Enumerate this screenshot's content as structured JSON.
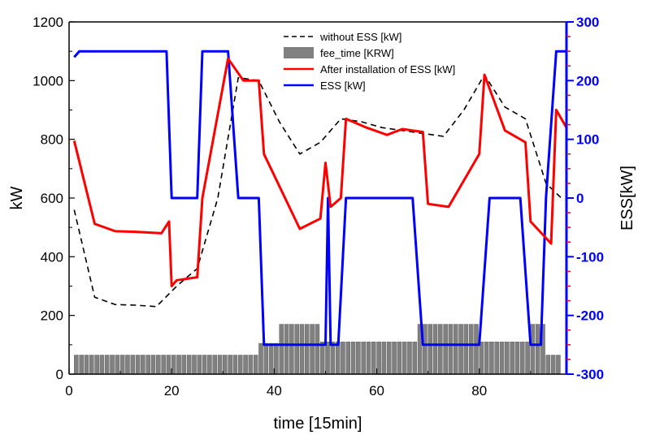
{
  "chart_data": {
    "type": "line",
    "xlabel": "time [15min]",
    "ylabel": "kW",
    "y2label": "ESS[kW]",
    "xlim": [
      0,
      97
    ],
    "ylim": [
      0,
      1200
    ],
    "y2lim": [
      -300,
      300
    ],
    "xticks": [
      0,
      20,
      40,
      60,
      80
    ],
    "yticks": [
      0,
      200,
      400,
      600,
      800,
      1000,
      1200
    ],
    "y2ticks": [
      -300,
      -200,
      -100,
      0,
      100,
      200,
      300
    ],
    "grid": false,
    "legend_position": "top-center",
    "colors": {
      "without_ess": "#000000",
      "fee_time": "#808080",
      "after_ess": "#ff0000",
      "ess": "#0000ff",
      "right_axis": "#0000ff"
    },
    "series": [
      {
        "name": "without ESS [kW]",
        "axis": "left",
        "style": "dashed",
        "points": [
          [
            1,
            560
          ],
          [
            5,
            262
          ],
          [
            9,
            237
          ],
          [
            13,
            235
          ],
          [
            17,
            230
          ],
          [
            21,
            300
          ],
          [
            25,
            360
          ],
          [
            29,
            600
          ],
          [
            33,
            1010
          ],
          [
            37,
            1000
          ],
          [
            41,
            860
          ],
          [
            45,
            750
          ],
          [
            49,
            790
          ],
          [
            53,
            870
          ],
          [
            57,
            860
          ],
          [
            61,
            840
          ],
          [
            65,
            830
          ],
          [
            69,
            820
          ],
          [
            73,
            810
          ],
          [
            77,
            900
          ],
          [
            81,
            1020
          ],
          [
            85,
            910
          ],
          [
            89,
            870
          ],
          [
            93,
            650
          ],
          [
            96,
            600
          ]
        ]
      },
      {
        "name": "fee_time [KRW]",
        "axis": "left",
        "style": "bars",
        "segments": [
          {
            "from": 1,
            "to": 37,
            "value": 65
          },
          {
            "from": 37,
            "to": 41,
            "value": 105
          },
          {
            "from": 41,
            "to": 49,
            "value": 170
          },
          {
            "from": 49,
            "to": 68,
            "value": 110
          },
          {
            "from": 68,
            "to": 80,
            "value": 170
          },
          {
            "from": 80,
            "to": 90,
            "value": 110
          },
          {
            "from": 90,
            "to": 93,
            "value": 170
          },
          {
            "from": 93,
            "to": 96,
            "value": 65
          }
        ]
      },
      {
        "name": "After installation of ESS [kW]",
        "axis": "left",
        "style": "solid",
        "points": [
          [
            1,
            795
          ],
          [
            5,
            512
          ],
          [
            9,
            487
          ],
          [
            13,
            485
          ],
          [
            18,
            480
          ],
          [
            19.5,
            520
          ],
          [
            20,
            300
          ],
          [
            21,
            320
          ],
          [
            25,
            330
          ],
          [
            26,
            600
          ],
          [
            31,
            1075
          ],
          [
            34,
            1000
          ],
          [
            37,
            1000
          ],
          [
            38,
            750
          ],
          [
            45,
            495
          ],
          [
            49,
            530
          ],
          [
            50,
            720
          ],
          [
            51,
            570
          ],
          [
            53,
            600
          ],
          [
            54,
            870
          ],
          [
            58,
            840
          ],
          [
            62,
            815
          ],
          [
            65,
            835
          ],
          [
            69,
            825
          ],
          [
            70,
            580
          ],
          [
            74,
            570
          ],
          [
            80,
            750
          ],
          [
            81,
            1020
          ],
          [
            85,
            830
          ],
          [
            89,
            790
          ],
          [
            90,
            520
          ],
          [
            94,
            445
          ],
          [
            95,
            900
          ],
          [
            97,
            840
          ]
        ]
      },
      {
        "name": "ESS [kW]",
        "axis": "right",
        "style": "solid",
        "points": [
          [
            1,
            240
          ],
          [
            2,
            250
          ],
          [
            19,
            250
          ],
          [
            20,
            0
          ],
          [
            25,
            0
          ],
          [
            26,
            250
          ],
          [
            31,
            250
          ],
          [
            33,
            0
          ],
          [
            37,
            0
          ],
          [
            38,
            -250
          ],
          [
            47,
            -250
          ],
          [
            47.3,
            -250
          ],
          [
            50,
            -250
          ],
          [
            50.5,
            0
          ],
          [
            51,
            -250
          ],
          [
            52.5,
            -250
          ],
          [
            54,
            0
          ],
          [
            67,
            0
          ],
          [
            69,
            -250
          ],
          [
            80,
            -250
          ],
          [
            82,
            0
          ],
          [
            88,
            0
          ],
          [
            90,
            -250
          ],
          [
            92,
            -250
          ],
          [
            93,
            0
          ],
          [
            95,
            250
          ],
          [
            97,
            250
          ]
        ]
      }
    ]
  }
}
